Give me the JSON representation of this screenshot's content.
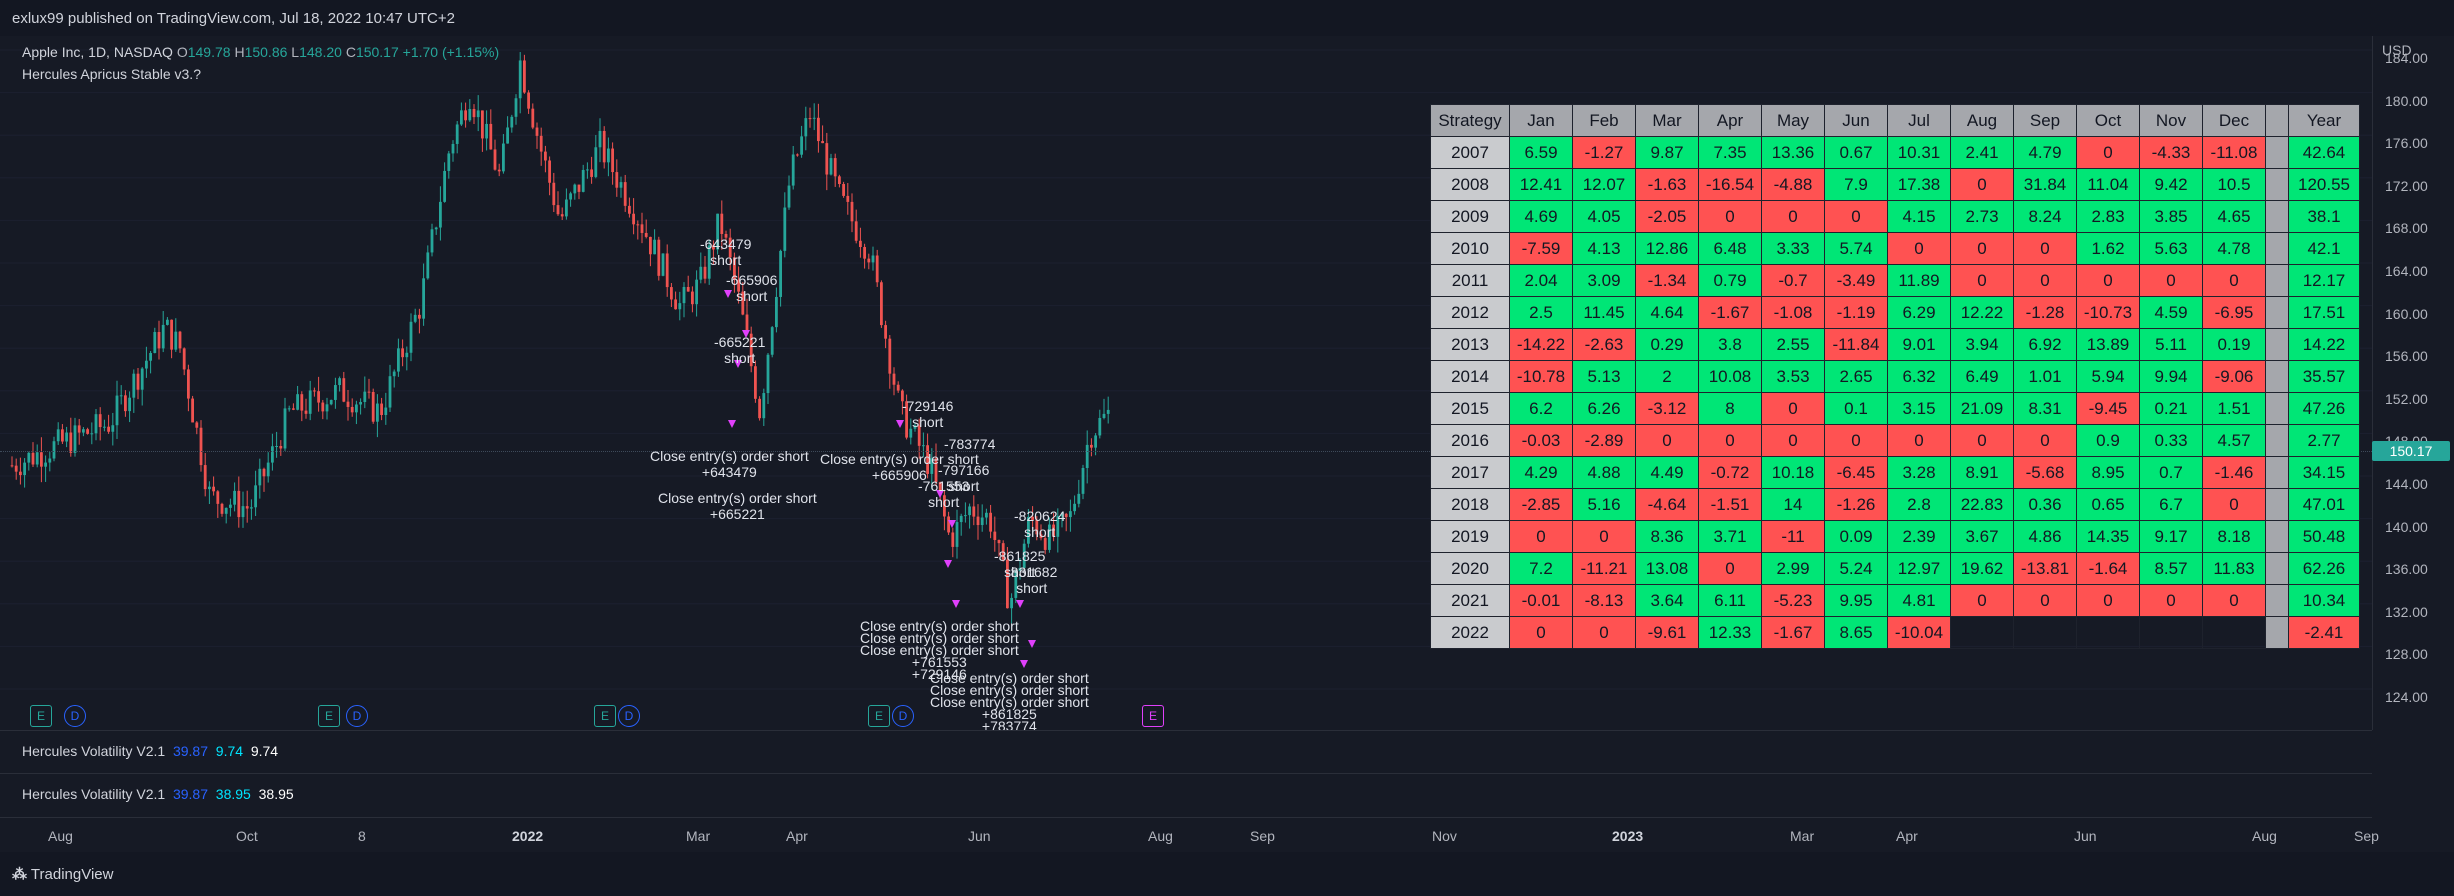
{
  "header": {
    "published": "exlux99 published on TradingView.com, Jul 18, 2022 10:47 UTC+2"
  },
  "symbol": {
    "name": "Apple Inc, 1D, NASDAQ",
    "o_label": "O",
    "o": "149.78",
    "h_label": "H",
    "h": "150.86",
    "l_label": "L",
    "l": "148.20",
    "c_label": "C",
    "c": "150.17",
    "change": "+1.70 (+1.15%)"
  },
  "strategy_name": "Hercules Apricus Stable v3.?",
  "price_axis": {
    "currency": "USD",
    "ticks": [
      "184.00",
      "180.00",
      "176.00",
      "172.00",
      "168.00",
      "164.00",
      "160.00",
      "156.00",
      "152.00",
      "148.00",
      "144.00",
      "140.00",
      "136.00",
      "132.00",
      "128.00",
      "124.00"
    ],
    "last_price": "150.17"
  },
  "indicators": [
    {
      "name": "Hercules Volatility V2.1",
      "v1": "39.87",
      "v2": "9.74",
      "v3": "9.74"
    },
    {
      "name": "Hercules Volatility V2.1",
      "v1": "39.87",
      "v2": "38.95",
      "v3": "38.95"
    }
  ],
  "time_axis": [
    {
      "label": "Aug",
      "bold": false
    },
    {
      "label": "Oct",
      "bold": false
    },
    {
      "label": "8",
      "bold": false
    },
    {
      "label": "2022",
      "bold": true
    },
    {
      "label": "Mar",
      "bold": false
    },
    {
      "label": "Apr",
      "bold": false
    },
    {
      "label": "Jun",
      "bold": false
    },
    {
      "label": "Aug",
      "bold": false
    },
    {
      "label": "Sep",
      "bold": false
    },
    {
      "label": "Nov",
      "bold": false
    },
    {
      "label": "2023",
      "bold": true
    },
    {
      "label": "Mar",
      "bold": false
    },
    {
      "label": "Apr",
      "bold": false
    },
    {
      "label": "Jun",
      "bold": false
    },
    {
      "label": "Aug",
      "bold": false
    },
    {
      "label": "Sep",
      "bold": false
    }
  ],
  "annotations": {
    "a1": "-643479\nshort",
    "a2": "-665906\nshort",
    "a3": "-665221\nshort",
    "a4": "Close entry(s) order short\n+643479",
    "a5": "Close entry(s) order short\n+665221",
    "a6": "-729146\nshort",
    "a7": "Close entry(s) order short\n+665906",
    "a8": "-783774",
    "a9": "-797166\nshort",
    "a10": "-761553\nshort",
    "a11": "-820624\nshort",
    "a12": "-861825\nshort",
    "a13": "-831682\nshort",
    "a14": "Close entry(s) order short\nClose entry(s) order short\nClose entry(s) order short\n+761553\n+729146",
    "a15": "Close entry(s) order short\nClose entry(s) order short\nClose entry(s) order short\n+861825\n+783774"
  },
  "events": [
    "E",
    "D",
    "E",
    "D",
    "E",
    "D",
    "E",
    "D",
    "E"
  ],
  "performance_table": {
    "headers": [
      "Strategy",
      "Jan",
      "Feb",
      "Mar",
      "Apr",
      "May",
      "Jun",
      "Jul",
      "Aug",
      "Sep",
      "Oct",
      "Nov",
      "Dec",
      "",
      "Year"
    ],
    "rows": [
      [
        "2007",
        "6.59",
        "-1.27",
        "9.87",
        "7.35",
        "13.36",
        "0.67",
        "10.31",
        "2.41",
        "4.79",
        "0",
        "-4.33",
        "-11.08",
        "42.64"
      ],
      [
        "2008",
        "12.41",
        "12.07",
        "-1.63",
        "-16.54",
        "-4.88",
        "7.9",
        "17.38",
        "0",
        "31.84",
        "11.04",
        "9.42",
        "10.5",
        "120.55"
      ],
      [
        "2009",
        "4.69",
        "4.05",
        "-2.05",
        "0",
        "0",
        "0",
        "4.15",
        "2.73",
        "8.24",
        "2.83",
        "3.85",
        "4.65",
        "38.1"
      ],
      [
        "2010",
        "-7.59",
        "4.13",
        "12.86",
        "6.48",
        "3.33",
        "5.74",
        "0",
        "0",
        "0",
        "1.62",
        "5.63",
        "4.78",
        "42.1"
      ],
      [
        "2011",
        "2.04",
        "3.09",
        "-1.34",
        "0.79",
        "-0.7",
        "-3.49",
        "11.89",
        "0",
        "0",
        "0",
        "0",
        "0",
        "12.17"
      ],
      [
        "2012",
        "2.5",
        "11.45",
        "4.64",
        "-1.67",
        "-1.08",
        "-1.19",
        "6.29",
        "12.22",
        "-1.28",
        "-10.73",
        "4.59",
        "-6.95",
        "17.51"
      ],
      [
        "2013",
        "-14.22",
        "-2.63",
        "0.29",
        "3.8",
        "2.55",
        "-11.84",
        "9.01",
        "3.94",
        "6.92",
        "13.89",
        "5.11",
        "0.19",
        "14.22"
      ],
      [
        "2014",
        "-10.78",
        "5.13",
        "2",
        "10.08",
        "3.53",
        "2.65",
        "6.32",
        "6.49",
        "1.01",
        "5.94",
        "9.94",
        "-9.06",
        "35.57"
      ],
      [
        "2015",
        "6.2",
        "6.26",
        "-3.12",
        "8",
        "0",
        "0.1",
        "3.15",
        "21.09",
        "8.31",
        "-9.45",
        "0.21",
        "1.51",
        "47.26"
      ],
      [
        "2016",
        "-0.03",
        "-2.89",
        "0",
        "0",
        "0",
        "0",
        "0",
        "0",
        "0",
        "0.9",
        "0.33",
        "4.57",
        "2.77"
      ],
      [
        "2017",
        "4.29",
        "4.88",
        "4.49",
        "-0.72",
        "10.18",
        "-6.45",
        "3.28",
        "8.91",
        "-5.68",
        "8.95",
        "0.7",
        "-1.46",
        "34.15"
      ],
      [
        "2018",
        "-2.85",
        "5.16",
        "-4.64",
        "-1.51",
        "14",
        "-1.26",
        "2.8",
        "22.83",
        "0.36",
        "0.65",
        "6.7",
        "0",
        "47.01"
      ],
      [
        "2019",
        "0",
        "0",
        "8.36",
        "3.71",
        "-11",
        "0.09",
        "2.39",
        "3.67",
        "4.86",
        "14.35",
        "9.17",
        "8.18",
        "50.48"
      ],
      [
        "2020",
        "7.2",
        "-11.21",
        "13.08",
        "0",
        "2.99",
        "5.24",
        "12.97",
        "19.62",
        "-13.81",
        "-1.64",
        "8.57",
        "11.83",
        "62.26"
      ],
      [
        "2021",
        "-0.01",
        "-8.13",
        "3.64",
        "6.11",
        "-5.23",
        "9.95",
        "4.81",
        "0",
        "0",
        "0",
        "0",
        "0",
        "10.34"
      ],
      [
        "2022",
        "0",
        "0",
        "-9.61",
        "12.33",
        "-1.67",
        "8.65",
        "-10.04",
        "",
        "",
        "",
        "",
        "",
        "-2.41"
      ]
    ]
  },
  "footer": {
    "logo": "TradingView"
  }
}
